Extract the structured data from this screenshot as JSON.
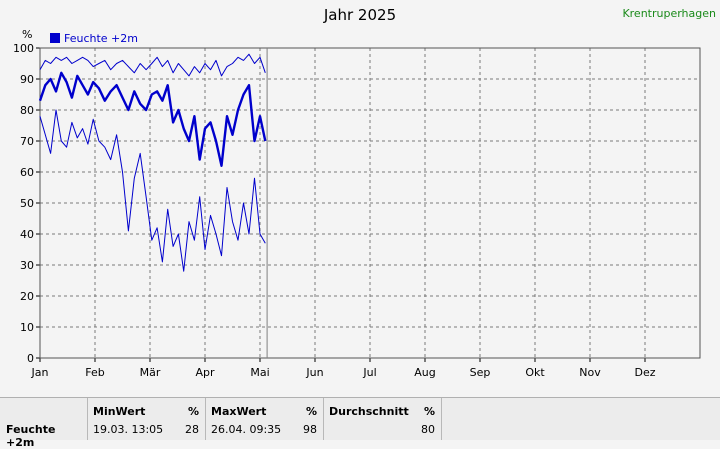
{
  "title": "Jahr 2025",
  "station": "Krentruperhagen",
  "chart_data": {
    "type": "line",
    "ylabel": "%",
    "ylim": [
      0,
      100
    ],
    "yticks": [
      0,
      10,
      20,
      30,
      40,
      50,
      60,
      70,
      80,
      90,
      100
    ],
    "months": [
      "Jan",
      "Feb",
      "Mär",
      "Apr",
      "Mai",
      "Jun",
      "Jul",
      "Aug",
      "Sep",
      "Okt",
      "Nov",
      "Dez"
    ],
    "grid": true,
    "legend_position": "top-left",
    "colors": {
      "series": "#0000cc",
      "grid": "#7a7a7a",
      "axis": "#000000",
      "current_date_line": "#808080"
    },
    "current_date": "2025-05-05",
    "series": [
      {
        "name": "Feuchte +2m",
        "style": "thick",
        "x": [
          "2025-01-01",
          "2025-01-04",
          "2025-01-07",
          "2025-01-10",
          "2025-01-13",
          "2025-01-16",
          "2025-01-19",
          "2025-01-22",
          "2025-01-25",
          "2025-01-28",
          "2025-01-31",
          "2025-02-03",
          "2025-02-06",
          "2025-02-09",
          "2025-02-12",
          "2025-02-15",
          "2025-02-18",
          "2025-02-21",
          "2025-02-24",
          "2025-02-27",
          "2025-03-02",
          "2025-03-05",
          "2025-03-08",
          "2025-03-11",
          "2025-03-14",
          "2025-03-17",
          "2025-03-20",
          "2025-03-23",
          "2025-03-26",
          "2025-03-29",
          "2025-04-01",
          "2025-04-04",
          "2025-04-07",
          "2025-04-10",
          "2025-04-13",
          "2025-04-16",
          "2025-04-19",
          "2025-04-22",
          "2025-04-25",
          "2025-04-28",
          "2025-05-01",
          "2025-05-04"
        ],
        "y": [
          83,
          88,
          90,
          86,
          92,
          89,
          84,
          91,
          88,
          85,
          89,
          87,
          83,
          86,
          88,
          84,
          80,
          86,
          82,
          80,
          85,
          86,
          83,
          88,
          76,
          80,
          74,
          70,
          78,
          64,
          74,
          76,
          70,
          62,
          78,
          72,
          80,
          85,
          88,
          70,
          78,
          70
        ]
      },
      {
        "name": "Feuchte +2m max",
        "style": "thin",
        "x": [
          "2025-01-01",
          "2025-01-04",
          "2025-01-07",
          "2025-01-10",
          "2025-01-13",
          "2025-01-16",
          "2025-01-19",
          "2025-01-22",
          "2025-01-25",
          "2025-01-28",
          "2025-01-31",
          "2025-02-03",
          "2025-02-06",
          "2025-02-09",
          "2025-02-12",
          "2025-02-15",
          "2025-02-18",
          "2025-02-21",
          "2025-02-24",
          "2025-02-27",
          "2025-03-02",
          "2025-03-05",
          "2025-03-08",
          "2025-03-11",
          "2025-03-14",
          "2025-03-17",
          "2025-03-20",
          "2025-03-23",
          "2025-03-26",
          "2025-03-29",
          "2025-04-01",
          "2025-04-04",
          "2025-04-07",
          "2025-04-10",
          "2025-04-13",
          "2025-04-16",
          "2025-04-19",
          "2025-04-22",
          "2025-04-25",
          "2025-04-28",
          "2025-05-01",
          "2025-05-04"
        ],
        "y": [
          93,
          96,
          95,
          97,
          96,
          97,
          95,
          96,
          97,
          96,
          94,
          95,
          96,
          93,
          95,
          96,
          94,
          92,
          95,
          93,
          95,
          97,
          94,
          96,
          92,
          95,
          93,
          91,
          94,
          92,
          95,
          93,
          96,
          91,
          94,
          95,
          97,
          96,
          98,
          95,
          97,
          92
        ]
      },
      {
        "name": "Feuchte +2m min",
        "style": "thin",
        "x": [
          "2025-01-01",
          "2025-01-04",
          "2025-01-07",
          "2025-01-10",
          "2025-01-13",
          "2025-01-16",
          "2025-01-19",
          "2025-01-22",
          "2025-01-25",
          "2025-01-28",
          "2025-01-31",
          "2025-02-03",
          "2025-02-06",
          "2025-02-09",
          "2025-02-12",
          "2025-02-15",
          "2025-02-18",
          "2025-02-21",
          "2025-02-24",
          "2025-02-27",
          "2025-03-02",
          "2025-03-05",
          "2025-03-08",
          "2025-03-11",
          "2025-03-14",
          "2025-03-17",
          "2025-03-20",
          "2025-03-23",
          "2025-03-26",
          "2025-03-29",
          "2025-04-01",
          "2025-04-04",
          "2025-04-07",
          "2025-04-10",
          "2025-04-13",
          "2025-04-16",
          "2025-04-19",
          "2025-04-22",
          "2025-04-25",
          "2025-04-28",
          "2025-05-01",
          "2025-05-04"
        ],
        "y": [
          78,
          72,
          66,
          80,
          70,
          68,
          76,
          71,
          74,
          69,
          77,
          70,
          68,
          64,
          72,
          60,
          41,
          58,
          66,
          52,
          38,
          42,
          31,
          48,
          36,
          40,
          28,
          44,
          38,
          52,
          35,
          46,
          40,
          33,
          55,
          44,
          38,
          50,
          40,
          58,
          40,
          37
        ]
      }
    ]
  },
  "footer": {
    "row_label": "Feuchte +2m",
    "min_header": "MinWert",
    "min_unit": "%",
    "min_when": "19.03.  13:05",
    "min_value": "28",
    "max_header": "MaxWert",
    "max_unit": "%",
    "max_when": "26.04.  09:35",
    "max_value": "98",
    "avg_header": "Durchschnitt",
    "avg_unit": "%",
    "avg_value": "80"
  }
}
